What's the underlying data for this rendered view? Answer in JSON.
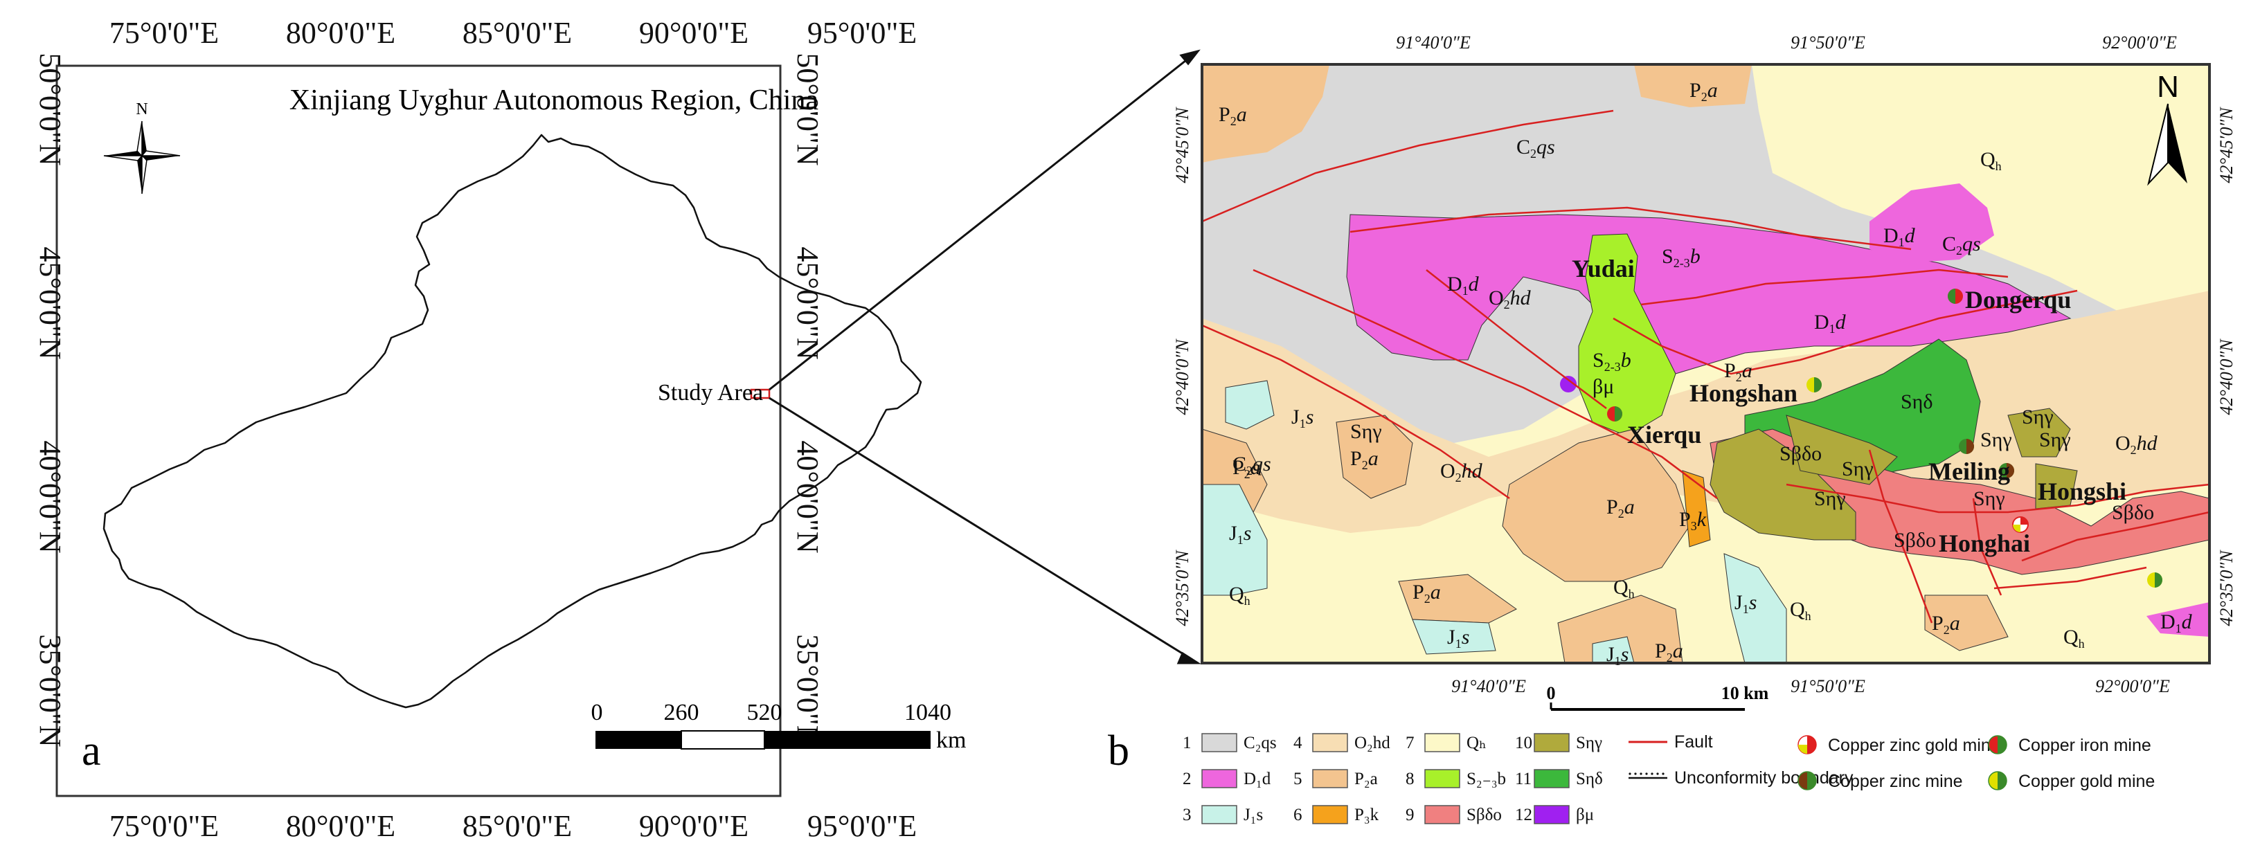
{
  "panel_a": {
    "letter": "a",
    "title": "Xinjiang Uyghur Autonomous Region, China",
    "north_label": "N",
    "study_area_label": "Study Area",
    "lon_ticks_top": [
      "75°0'0\"E",
      "80°0'0\"E",
      "85°0'0\"E",
      "90°0'0\"E",
      "95°0'0\"E"
    ],
    "lon_ticks_bottom": [
      "75°0'0\"E",
      "80°0'0\"E",
      "85°0'0\"E",
      "90°0'0\"E",
      "95°0'0\"E"
    ],
    "lat_ticks_left": [
      "50°0'0\"N",
      "45°0'0\"N",
      "40°0'0\"N",
      "35°0'0\"N"
    ],
    "lat_ticks_right": [
      "50°0'0\"N",
      "45°0'0\"N",
      "40°0'0\"N",
      "35°0'0\"N"
    ],
    "scale_labels": [
      "0",
      "260",
      "520",
      "1040"
    ],
    "scale_unit": "km"
  },
  "panel_b": {
    "letter": "b",
    "north_label": "N",
    "lon_ticks_top": [
      "91°40′0″E",
      "91°50′0″E",
      "92°00′0″E"
    ],
    "lon_ticks_bottom": [
      "91°40′0″E",
      "91°50′0″E",
      "92°00′0″E"
    ],
    "lat_ticks_left": [
      "42°45′0″N",
      "42°40′0″N",
      "42°35′0″N"
    ],
    "lat_ticks_right": [
      "42°45′0″N",
      "42°40′0″N",
      "42°35′0″N"
    ],
    "scale_zero": "0",
    "scale_label": "10 km",
    "mines": [
      "Yudai",
      "Dongerqu",
      "Hongshan",
      "Xierqu",
      "Meiling",
      "Hongshi",
      "Honghai"
    ]
  },
  "legend": {
    "units": [
      {
        "num": "1",
        "code": "C₂qs",
        "color": "#d9d9d9"
      },
      {
        "num": "2",
        "code": "D₁d",
        "color": "#ee66dd"
      },
      {
        "num": "3",
        "code": "J₁s",
        "color": "#c8f2e8"
      },
      {
        "num": "4",
        "code": "O₂hd",
        "color": "#f7deb4"
      },
      {
        "num": "5",
        "code": "P₂a",
        "color": "#f3c48f"
      },
      {
        "num": "6",
        "code": "P₃k",
        "color": "#f5a21c"
      },
      {
        "num": "7",
        "code": "Qₕ",
        "color": "#fdf8c8"
      },
      {
        "num": "8",
        "code": "S₂₋₃b",
        "color": "#a8f02a"
      },
      {
        "num": "9",
        "code": "Sβδo",
        "color": "#f08080"
      },
      {
        "num": "10",
        "code": "Sηγ",
        "color": "#b0aa3c"
      },
      {
        "num": "11",
        "code": "Sηδ",
        "color": "#3cb83c"
      },
      {
        "num": "12",
        "code": "βμ",
        "color": "#a020f0"
      }
    ],
    "fault": "Fault",
    "unconformity": "Unconformity boundary",
    "mine_types": [
      {
        "label": "Copper zinc gold mine",
        "colors": [
          "#ffffff",
          "#e02020",
          "#e0e000"
        ]
      },
      {
        "label": "Copper iron mine",
        "colors": [
          "#e02020",
          "#3a8a2a"
        ]
      },
      {
        "label": "Copper zinc mine",
        "colors": [
          "#7a3a10",
          "#3a8a2a"
        ]
      },
      {
        "label": "Copper gold mine",
        "colors": [
          "#e0e000",
          "#3a8a2a"
        ]
      }
    ]
  }
}
